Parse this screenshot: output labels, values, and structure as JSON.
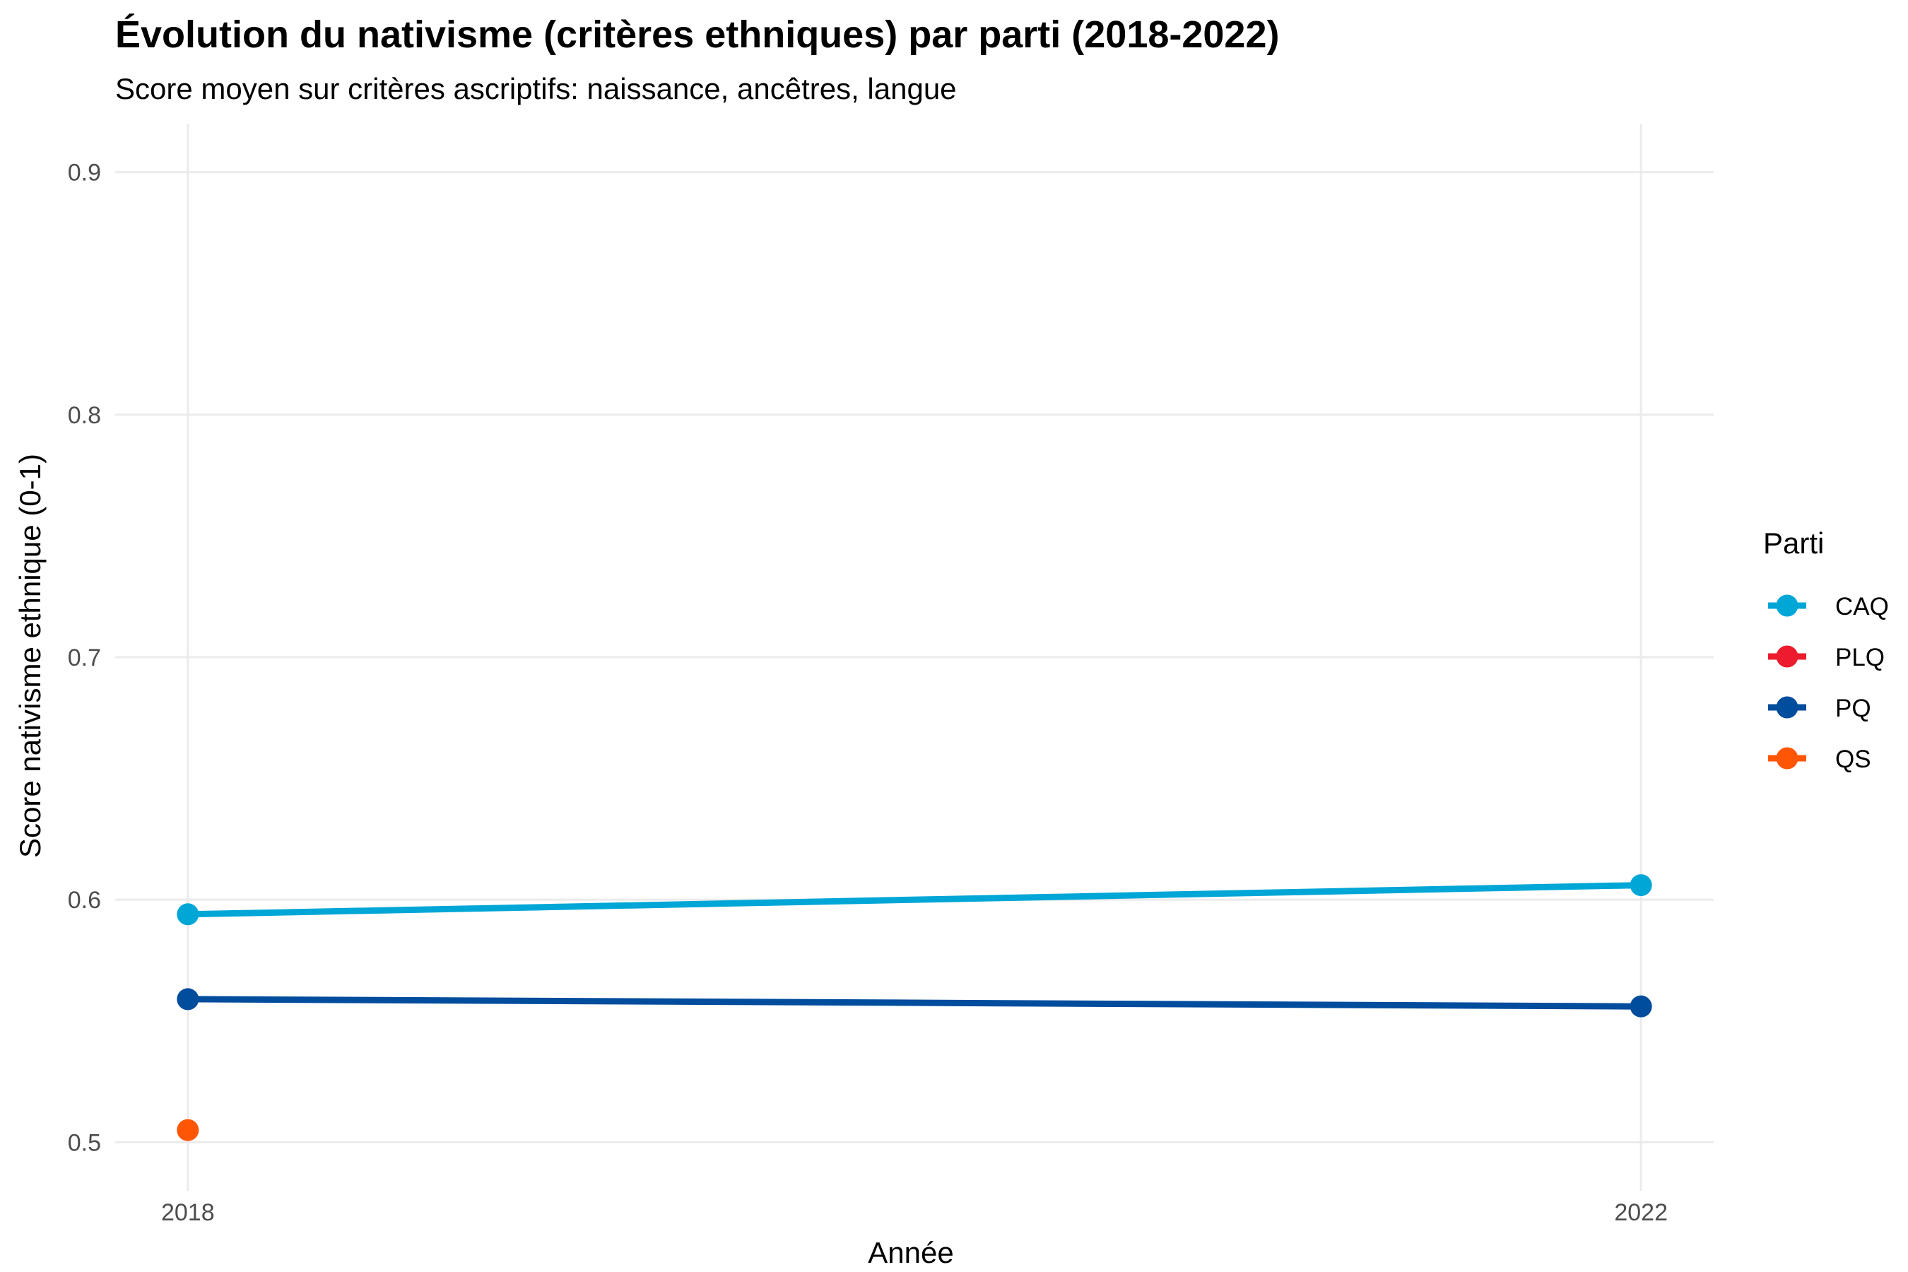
{
  "chart_data": {
    "type": "line",
    "title": "Évolution du nativisme (critères ethniques) par parti (2018-2022)",
    "subtitle": "Score moyen sur critères ascriptifs: naissance, ancêtres, langue",
    "xlabel": "Année",
    "ylabel": "Score nativisme ethnique (0-1)",
    "x": [
      2018,
      2022
    ],
    "x_ticks": [
      "2018",
      "2022"
    ],
    "xlim": [
      2017.8,
      2022.2
    ],
    "ylim": [
      0.48,
      0.92
    ],
    "y_ticks": [
      "0.5",
      "0.6",
      "0.7",
      "0.8",
      "0.9"
    ],
    "grid": true,
    "legend": {
      "title": "Parti",
      "placement": "right"
    },
    "series": [
      {
        "name": "CAQ",
        "color": "#00A6D6",
        "values": [
          0.594,
          0.606
        ]
      },
      {
        "name": "PLQ",
        "color": "#ED1B2E",
        "values": [
          null,
          null
        ]
      },
      {
        "name": "PQ",
        "color": "#004C9D",
        "values": [
          0.559,
          0.556
        ]
      },
      {
        "name": "QS",
        "color": "#FF5605",
        "values": [
          0.505,
          null
        ]
      }
    ]
  }
}
